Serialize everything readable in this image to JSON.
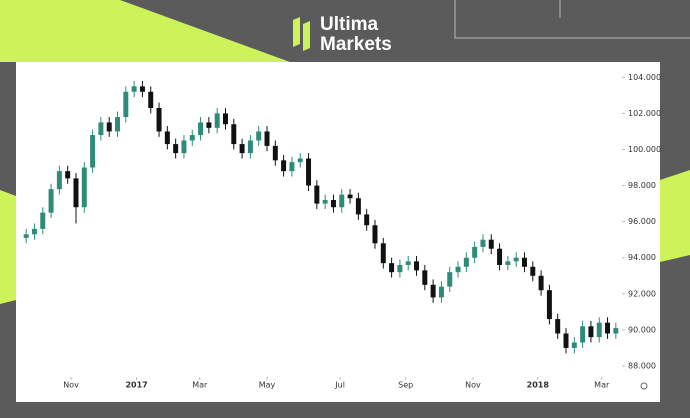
{
  "brand": {
    "line1": "Ultima",
    "line2": "Markets"
  },
  "chart_data": {
    "type": "candlestick",
    "up_color": "#2e8b7a",
    "down_color": "#111111",
    "series": {
      "open": [
        95.1,
        95.3,
        95.6,
        96.5,
        97.8,
        98.8,
        98.4,
        96.8,
        99.0,
        100.8,
        101.5,
        101.0,
        101.8,
        103.2,
        103.5,
        103.2,
        102.3,
        101.0,
        100.3,
        99.8,
        100.5,
        100.8,
        101.5,
        101.2,
        102.0,
        101.4,
        100.3,
        99.8,
        100.5,
        101.0,
        100.2,
        99.4,
        98.8,
        99.3,
        99.5,
        98.0,
        97.0,
        97.2,
        96.8,
        97.5,
        97.3,
        96.4,
        95.8,
        94.8,
        93.7,
        93.2,
        93.6,
        93.8,
        93.3,
        92.5,
        91.8,
        92.4,
        93.2,
        93.5,
        94.0,
        94.6,
        95.0,
        94.5,
        93.6,
        93.8,
        94.0,
        93.5,
        93.0,
        92.2,
        90.6,
        89.8,
        89.0,
        89.3,
        90.2,
        89.6,
        90.4,
        89.8
      ],
      "high": [
        95.6,
        95.9,
        96.8,
        98.1,
        99.1,
        99.1,
        98.7,
        99.3,
        101.1,
        101.8,
        101.8,
        102.1,
        103.5,
        103.8,
        103.8,
        103.5,
        102.6,
        101.3,
        100.6,
        100.8,
        101.1,
        101.8,
        101.8,
        102.3,
        102.3,
        101.7,
        100.6,
        100.8,
        101.3,
        101.3,
        100.5,
        99.7,
        99.6,
        99.8,
        99.8,
        98.3,
        97.5,
        97.5,
        97.8,
        97.8,
        97.6,
        96.7,
        96.1,
        95.1,
        94.0,
        93.9,
        94.1,
        94.1,
        93.6,
        92.8,
        92.7,
        93.5,
        93.8,
        94.3,
        94.9,
        95.3,
        95.3,
        94.8,
        94.1,
        94.3,
        94.3,
        93.8,
        93.3,
        92.5,
        90.9,
        90.1,
        89.6,
        90.5,
        90.5,
        90.7,
        90.7,
        90.4
      ],
      "low": [
        94.8,
        95.0,
        95.3,
        96.2,
        97.5,
        98.1,
        95.9,
        96.5,
        98.7,
        100.5,
        100.7,
        100.7,
        101.5,
        102.9,
        102.9,
        102.0,
        100.7,
        100.0,
        99.5,
        99.5,
        100.2,
        100.5,
        100.9,
        100.9,
        101.1,
        100.0,
        99.5,
        99.5,
        100.2,
        99.9,
        99.1,
        98.5,
        98.5,
        99.0,
        97.7,
        96.7,
        96.7,
        96.5,
        96.5,
        97.0,
        96.1,
        95.5,
        94.5,
        93.4,
        92.9,
        92.9,
        93.3,
        93.0,
        92.2,
        91.5,
        91.5,
        92.1,
        92.9,
        93.2,
        93.7,
        94.3,
        94.2,
        93.3,
        93.3,
        93.5,
        93.2,
        92.7,
        91.9,
        90.3,
        89.5,
        88.7,
        88.7,
        89.0,
        89.3,
        89.3,
        89.5,
        89.5
      ],
      "close": [
        95.3,
        95.6,
        96.5,
        97.8,
        98.8,
        98.4,
        96.8,
        99.0,
        100.8,
        101.5,
        101.0,
        101.8,
        103.2,
        103.5,
        103.2,
        102.3,
        101.0,
        100.3,
        99.8,
        100.5,
        100.8,
        101.5,
        101.2,
        102.0,
        101.4,
        100.3,
        99.8,
        100.5,
        101.0,
        100.2,
        99.4,
        98.8,
        99.3,
        99.5,
        98.0,
        97.0,
        97.2,
        96.8,
        97.5,
        97.3,
        96.4,
        95.8,
        94.8,
        93.7,
        93.2,
        93.6,
        93.8,
        93.3,
        92.5,
        91.8,
        92.4,
        93.2,
        93.5,
        94.0,
        94.6,
        95.0,
        94.5,
        93.6,
        93.8,
        94.0,
        93.5,
        93.0,
        92.2,
        90.6,
        89.8,
        89.0,
        89.3,
        90.2,
        89.6,
        90.4,
        89.8,
        90.1
      ]
    },
    "xlim": [
      -0.5,
      71.5
    ],
    "xticks": [
      {
        "value": 5.4,
        "label": "Nov"
      },
      {
        "value": 13.3,
        "label": "2017"
      },
      {
        "value": 20.9,
        "label": "Mar"
      },
      {
        "value": 29.0,
        "label": "May"
      },
      {
        "value": 37.8,
        "label": "Jul"
      },
      {
        "value": 45.7,
        "label": "Sep"
      },
      {
        "value": 53.8,
        "label": "Nov"
      },
      {
        "value": 61.6,
        "label": "2018"
      },
      {
        "value": 69.3,
        "label": "Mar"
      }
    ],
    "ylim": [
      87.5,
      104.85
    ],
    "yticks": [
      {
        "value": 88,
        "label": "88.000"
      },
      {
        "value": 90,
        "label": "90.000"
      },
      {
        "value": 92,
        "label": "92.000"
      },
      {
        "value": 94,
        "label": "94.000"
      },
      {
        "value": 96,
        "label": "96.000"
      },
      {
        "value": 98,
        "label": "98.000"
      },
      {
        "value": 100,
        "label": "100.000"
      },
      {
        "value": 102,
        "label": "102.000"
      },
      {
        "value": 104,
        "label": "104.000"
      }
    ]
  }
}
